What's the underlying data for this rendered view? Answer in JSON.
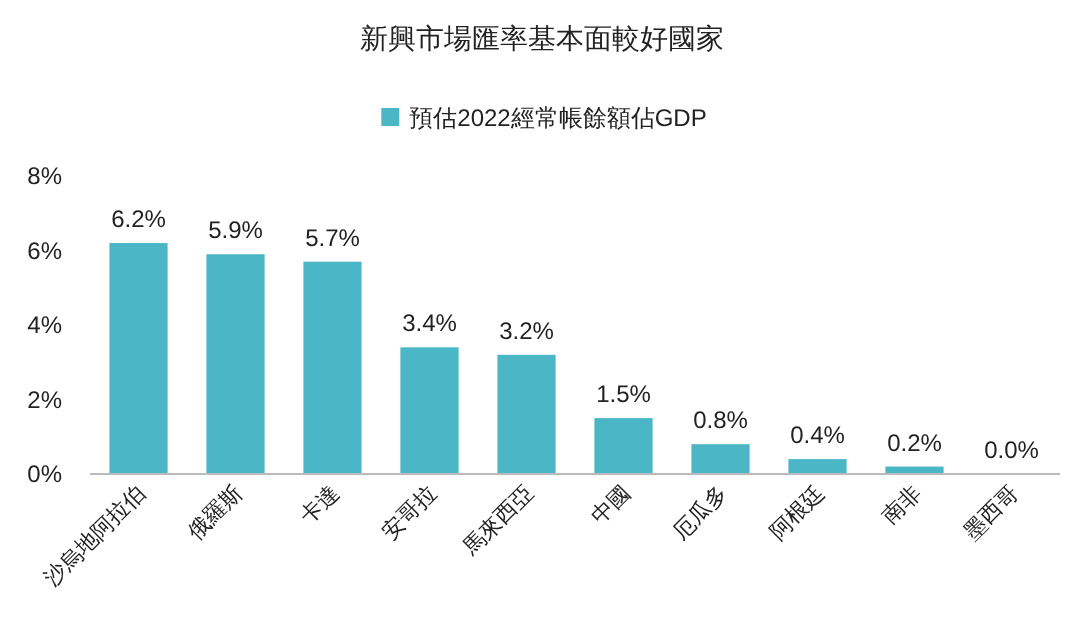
{
  "chart_data": {
    "type": "bar",
    "title": "新興市場匯率基本面較好國家",
    "categories": [
      "沙烏地阿拉伯",
      "俄羅斯",
      "卡達",
      "安哥拉",
      "馬來西亞",
      "中國",
      "厄瓜多",
      "阿根廷",
      "南非",
      "墨西哥"
    ],
    "series": [
      {
        "name": "預估2022經常帳餘額佔GDP",
        "color": "#4bb6c5",
        "values": [
          6.2,
          5.9,
          5.7,
          3.4,
          3.2,
          1.5,
          0.8,
          0.4,
          0.2,
          0.0
        ]
      }
    ],
    "value_labels": [
      "6.2%",
      "5.9%",
      "5.7%",
      "3.4%",
      "3.2%",
      "1.5%",
      "0.8%",
      "0.4%",
      "0.2%",
      "0.0%"
    ],
    "ylim": [
      0,
      8
    ],
    "yticks": [
      {
        "value": 0,
        "label": "0%"
      },
      {
        "value": 2,
        "label": "2%"
      },
      {
        "value": 4,
        "label": "4%"
      },
      {
        "value": 6,
        "label": "6%"
      },
      {
        "value": 8,
        "label": "8%"
      }
    ],
    "grid": false,
    "legend": "top"
  }
}
